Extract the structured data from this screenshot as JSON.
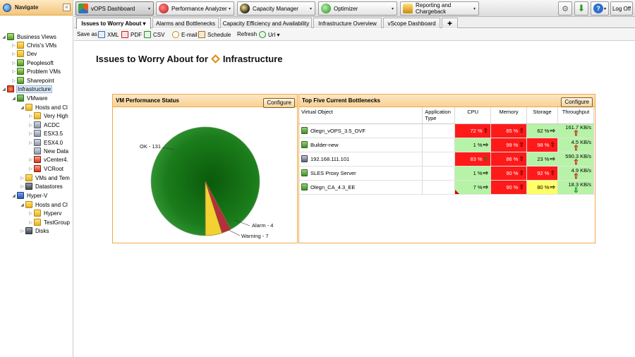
{
  "nav": {
    "title": "Navigate",
    "collapse": "«",
    "tree": [
      {
        "label": "Business Views",
        "icon": "business-views-icon"
      },
      {
        "label": "Chris's VMs",
        "icon": "folder-icon"
      },
      {
        "label": "Dev",
        "icon": "folder-icon"
      },
      {
        "label": "Peoplesoft",
        "icon": "business-view-icon"
      },
      {
        "label": "Problem VMs",
        "icon": "business-view-icon"
      },
      {
        "label": "Sharepoint",
        "icon": "business-view-icon"
      },
      {
        "label": "Infrastructure",
        "icon": "infrastructure-icon"
      },
      {
        "label": "VMware",
        "icon": "vmware-icon"
      },
      {
        "label": "Hosts and Cl",
        "icon": "folder-icon"
      },
      {
        "label": "Very High",
        "icon": "folder-icon"
      },
      {
        "label": "ACDC",
        "icon": "host-icon"
      },
      {
        "label": "ESX3.5",
        "icon": "host-icon"
      },
      {
        "label": "ESX4.0",
        "icon": "host-icon"
      },
      {
        "label": "New Data",
        "icon": "host-icon"
      },
      {
        "label": "vCenter4.",
        "icon": "vcenter-icon"
      },
      {
        "label": "VCRoot",
        "icon": "vcenter-icon"
      },
      {
        "label": "VMs and Tem",
        "icon": "folder-icon"
      },
      {
        "label": "Datastores",
        "icon": "datastore-icon"
      },
      {
        "label": "Hyper-V",
        "icon": "hyperv-icon"
      },
      {
        "label": "Hosts and Cl",
        "icon": "folder-icon"
      },
      {
        "label": "Hyperv",
        "icon": "folder-icon"
      },
      {
        "label": "TestGroup",
        "icon": "folder-icon"
      },
      {
        "label": "Disks",
        "icon": "datastore-icon"
      }
    ]
  },
  "toolbar": {
    "modules": [
      {
        "label": "vOPS Dashboard",
        "icon": "vops-icon",
        "color": "#e55b1a"
      },
      {
        "label": "Performance Analyzer",
        "icon": "performance-icon",
        "color": "#cc1f1f"
      },
      {
        "label": "Capacity Manager",
        "icon": "capacity-icon",
        "color": "#222222"
      },
      {
        "label": "Optimizer",
        "icon": "optimizer-icon",
        "color": "#2a9a2a"
      },
      {
        "label": "Reporting and Chargeback",
        "icon": "reporting-icon",
        "color": "#d8a020"
      }
    ],
    "dropdown_glyph": "▾",
    "logoff_label": "Log Off"
  },
  "tabs": [
    {
      "label": "Issues to Worry About ▾",
      "active": true
    },
    {
      "label": "Alarms and Bottlenecks"
    },
    {
      "label": "Capacity Efficiency and Availability"
    },
    {
      "label": "Infrastructure Overview"
    },
    {
      "label": "vScope Dashboard"
    },
    {
      "label": "✚"
    }
  ],
  "savebar": {
    "save_as": "Save as",
    "xml": "XML",
    "pdf": "PDF",
    "csv": "CSV",
    "email": "E-mail",
    "schedule": "Schedule",
    "refresh": "Refresh",
    "url": "Url ▾"
  },
  "page": {
    "title_prefix": "Issues to Worry About for",
    "title_object": "Infrastructure"
  },
  "vm_status_panel": {
    "title": "VM Performance Status",
    "configure": "Configure"
  },
  "chart_data": {
    "type": "pie",
    "slices": [
      {
        "label": "OK - 131",
        "value": 131,
        "color": "#1b7d1b"
      },
      {
        "label": "Alarm - 4",
        "value": 4,
        "color": "#b4303a"
      },
      {
        "label": "Warning - 7",
        "value": 7,
        "color": "#f2d230"
      }
    ]
  },
  "bottleneck_panel": {
    "title": "Top Five Current Bottlenecks",
    "configure": "Configure",
    "columns": [
      "Virtual Object",
      "Application Type",
      "CPU",
      "Memory",
      "Storage",
      "Throughput"
    ],
    "rows": [
      {
        "name": "Olegn_vOPS_3.5_OVF",
        "icon": "vm-icon",
        "cpu": {
          "value": "72 %",
          "level": "red",
          "trend": "up"
        },
        "memory": {
          "value": "85 %",
          "level": "red",
          "trend": "up"
        },
        "storage": {
          "value": "62 %",
          "level": "green",
          "trend": "right"
        },
        "throughput": {
          "value": "161.7 KB/s",
          "level": "green",
          "trend": "up"
        }
      },
      {
        "name": "Builder-new",
        "icon": "vm-icon",
        "cpu": {
          "value": "1 %",
          "level": "green",
          "trend": "right"
        },
        "memory": {
          "value": "99 %",
          "level": "red",
          "trend": "up"
        },
        "storage": {
          "value": "98 %",
          "level": "red",
          "trend": "up"
        },
        "throughput": {
          "value": "4.5 KB/s",
          "level": "green",
          "trend": "up"
        }
      },
      {
        "name": "192.168.111.101",
        "icon": "host-icon",
        "cpu": {
          "value": "83 %",
          "level": "red",
          "trend": "down"
        },
        "memory": {
          "value": "86 %",
          "level": "red",
          "trend": "up"
        },
        "storage": {
          "value": "23 %",
          "level": "green",
          "trend": "right"
        },
        "throughput": {
          "value": "590.3 KB/s",
          "level": "green",
          "trend": "up"
        }
      },
      {
        "name": "SLES Proxy Server",
        "icon": "vm-icon",
        "cpu": {
          "value": "1 %",
          "level": "green",
          "trend": "right"
        },
        "memory": {
          "value": "90 %",
          "level": "red",
          "trend": "up"
        },
        "storage": {
          "value": "92 %",
          "level": "red",
          "trend": "up"
        },
        "throughput": {
          "value": "4.9 KB/s",
          "level": "green",
          "trend": "up"
        }
      },
      {
        "name": "Olegn_CA_4.3_EE",
        "icon": "vm-icon",
        "cpu": {
          "value": "7 %",
          "level": "green",
          "trend": "right",
          "flag": true
        },
        "memory": {
          "value": "90 %",
          "level": "red",
          "trend": "up"
        },
        "storage": {
          "value": "80 %",
          "level": "yellow",
          "trend": "right"
        },
        "throughput": {
          "value": "18.3 KB/s",
          "level": "green",
          "trend": "down"
        }
      }
    ]
  }
}
